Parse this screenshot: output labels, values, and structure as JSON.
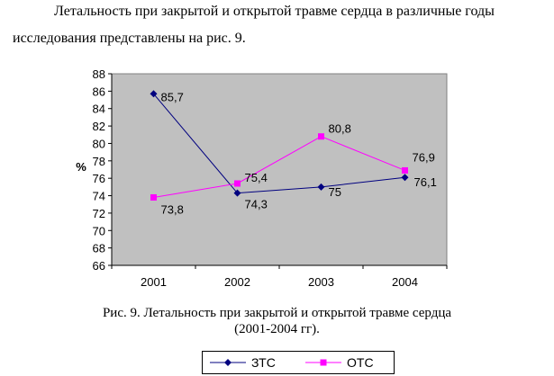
{
  "paragraph": {
    "line1": "Летальность при закрытой и открытой травме сердца в различные годы",
    "line2": "исследования представлены на рис. 9."
  },
  "caption": {
    "line1": "Рис. 9.  Летальность при закрытой и открытой травме сердца",
    "line2": "(2001-2004 гг)."
  },
  "chart_data": {
    "type": "line",
    "categories": [
      "2001",
      "2002",
      "2003",
      "2004"
    ],
    "series": [
      {
        "name": "ЗТС",
        "values": [
          85.7,
          74.3,
          75,
          76.1
        ],
        "labels": [
          "85,7",
          "74,3",
          "75",
          "76,1"
        ],
        "color": "#00007f",
        "marker": "diamond"
      },
      {
        "name": "ОТС",
        "values": [
          73.8,
          75.4,
          80.8,
          76.9
        ],
        "labels": [
          "73,8",
          "75,4",
          "80,8",
          "76,9"
        ],
        "color": "#ff00ff",
        "marker": "square"
      }
    ],
    "ylabel": "%",
    "ylim": [
      66,
      88
    ],
    "yticks": [
      66,
      68,
      70,
      72,
      74,
      76,
      78,
      80,
      82,
      84,
      86,
      88
    ],
    "plot_background": "#c0c0c0",
    "grid": false,
    "legend_position": "bottom"
  }
}
